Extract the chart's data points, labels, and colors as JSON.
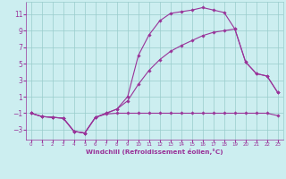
{
  "xlabel": "Windchill (Refroidissement éolien,°C)",
  "bg_color": "#cceef0",
  "grid_color": "#99cccc",
  "line_color": "#993399",
  "xlim": [
    -0.5,
    23.5
  ],
  "ylim": [
    -4.2,
    12.5
  ],
  "yticks": [
    -3,
    -1,
    1,
    3,
    5,
    7,
    9,
    11
  ],
  "xticks": [
    0,
    1,
    2,
    3,
    4,
    5,
    6,
    7,
    8,
    9,
    10,
    11,
    12,
    13,
    14,
    15,
    16,
    17,
    18,
    19,
    20,
    21,
    22,
    23
  ],
  "line1_x": [
    0,
    1,
    2,
    3,
    4,
    5,
    6,
    7,
    8,
    9,
    10,
    11,
    12,
    13,
    14,
    15,
    16,
    17,
    18,
    19,
    20,
    21,
    22,
    23
  ],
  "line1_y": [
    -1.0,
    -1.4,
    -1.5,
    -1.6,
    -3.2,
    -3.4,
    -1.5,
    -1.1,
    -1.0,
    -1.0,
    -1.0,
    -1.0,
    -1.0,
    -1.0,
    -1.0,
    -1.0,
    -1.0,
    -1.0,
    -1.0,
    -1.0,
    -1.0,
    -1.0,
    -1.0,
    -1.3
  ],
  "line2_x": [
    0,
    1,
    2,
    3,
    4,
    5,
    6,
    7,
    8,
    9,
    10,
    11,
    12,
    13,
    14,
    15,
    16,
    17,
    18,
    19,
    20,
    21,
    22,
    23
  ],
  "line2_y": [
    -1.0,
    -1.4,
    -1.5,
    -1.6,
    -3.2,
    -3.4,
    -1.5,
    -1.0,
    -0.5,
    1.0,
    6.0,
    8.5,
    10.2,
    11.1,
    11.3,
    11.5,
    11.8,
    11.5,
    11.2,
    9.2,
    5.2,
    3.8,
    3.5,
    1.5
  ],
  "line3_x": [
    0,
    1,
    2,
    3,
    4,
    5,
    6,
    7,
    8,
    9,
    10,
    11,
    12,
    13,
    14,
    15,
    16,
    17,
    18,
    19,
    20,
    21,
    22,
    23
  ],
  "line3_y": [
    -1.0,
    -1.4,
    -1.5,
    -1.6,
    -3.2,
    -3.4,
    -1.5,
    -1.0,
    -0.5,
    0.5,
    2.5,
    4.2,
    5.5,
    6.5,
    7.2,
    7.8,
    8.4,
    8.8,
    9.0,
    9.2,
    5.2,
    3.8,
    3.5,
    1.5
  ]
}
